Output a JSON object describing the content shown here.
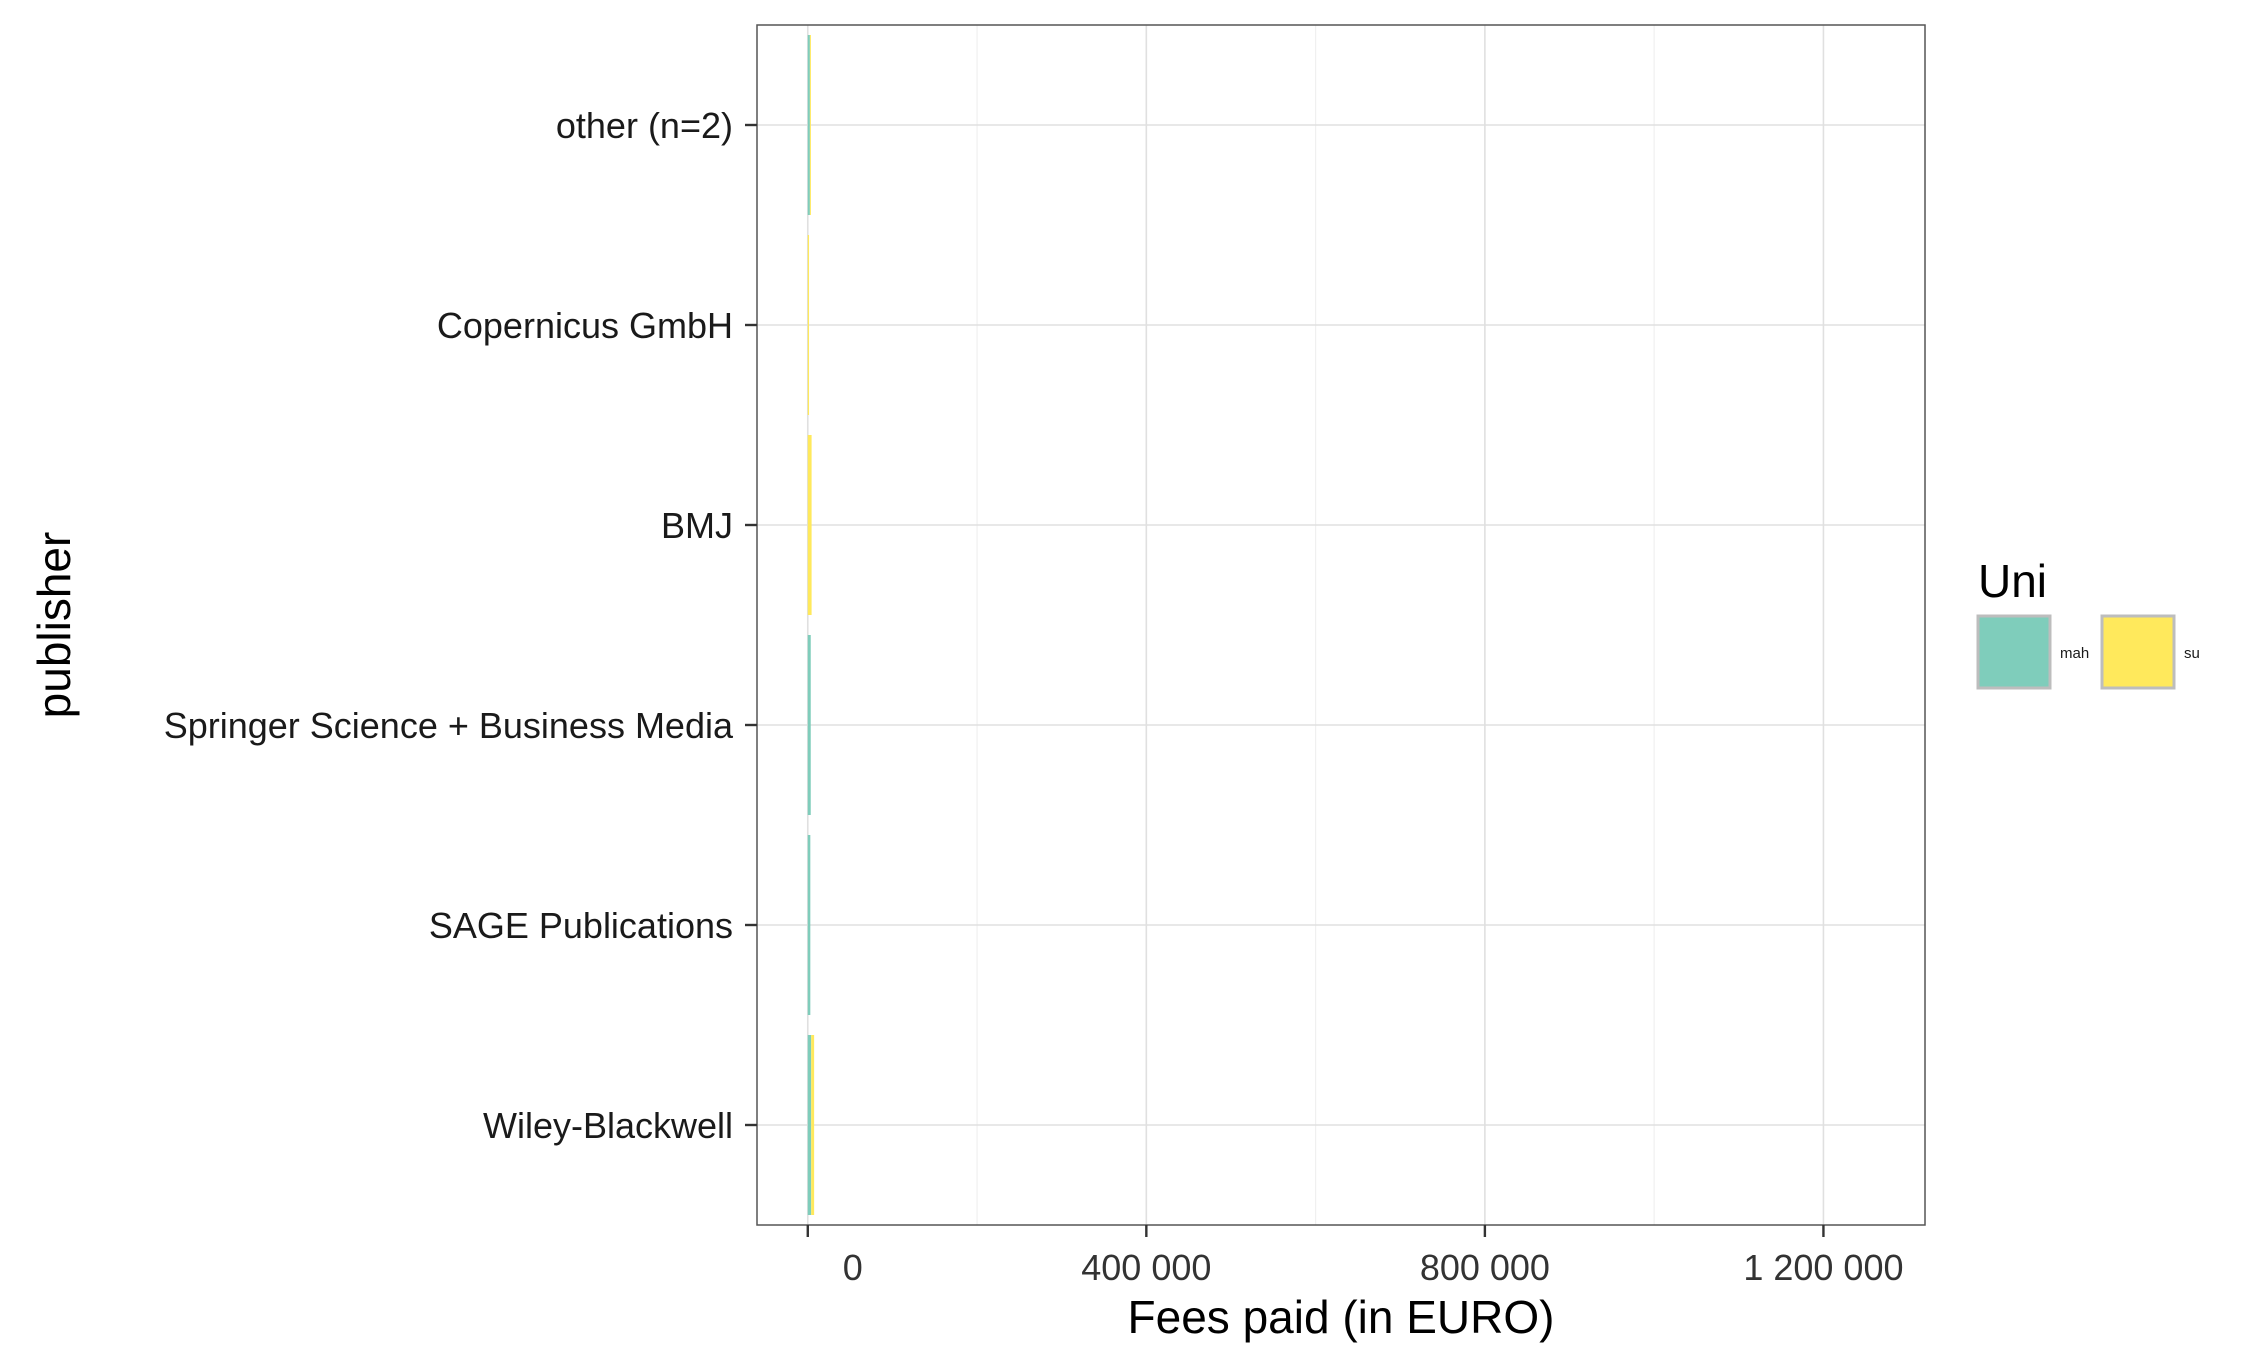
{
  "chart_data": {
    "type": "bar",
    "orientation": "horizontal",
    "stacked": true,
    "title": "",
    "xlabel": "Fees paid (in EURO)",
    "ylabel": "publisher",
    "xlim": [
      -60000,
      1320000
    ],
    "xticks": [
      0,
      400000,
      800000,
      1200000
    ],
    "xtick_labels": [
      "0",
      "400 000",
      "800 000",
      "1 200 000"
    ],
    "categories": [
      "other (n=2)",
      "Copernicus GmbH",
      "BMJ",
      "Springer Science + Business Media",
      "SAGE Publications",
      "Wiley-Blackwell"
    ],
    "series": [
      {
        "name": "mah",
        "color": "#7fcdbb",
        "values": [
          2500,
          0,
          0,
          3500,
          3000,
          4000
        ]
      },
      {
        "name": "su",
        "color": "#ffe95c",
        "values": [
          1000,
          1500,
          4500,
          0,
          0,
          3500
        ]
      }
    ],
    "legend": {
      "title": "Uni",
      "position": "right",
      "entries": [
        "mah",
        "su"
      ]
    },
    "grid": true,
    "theme": "bw"
  }
}
